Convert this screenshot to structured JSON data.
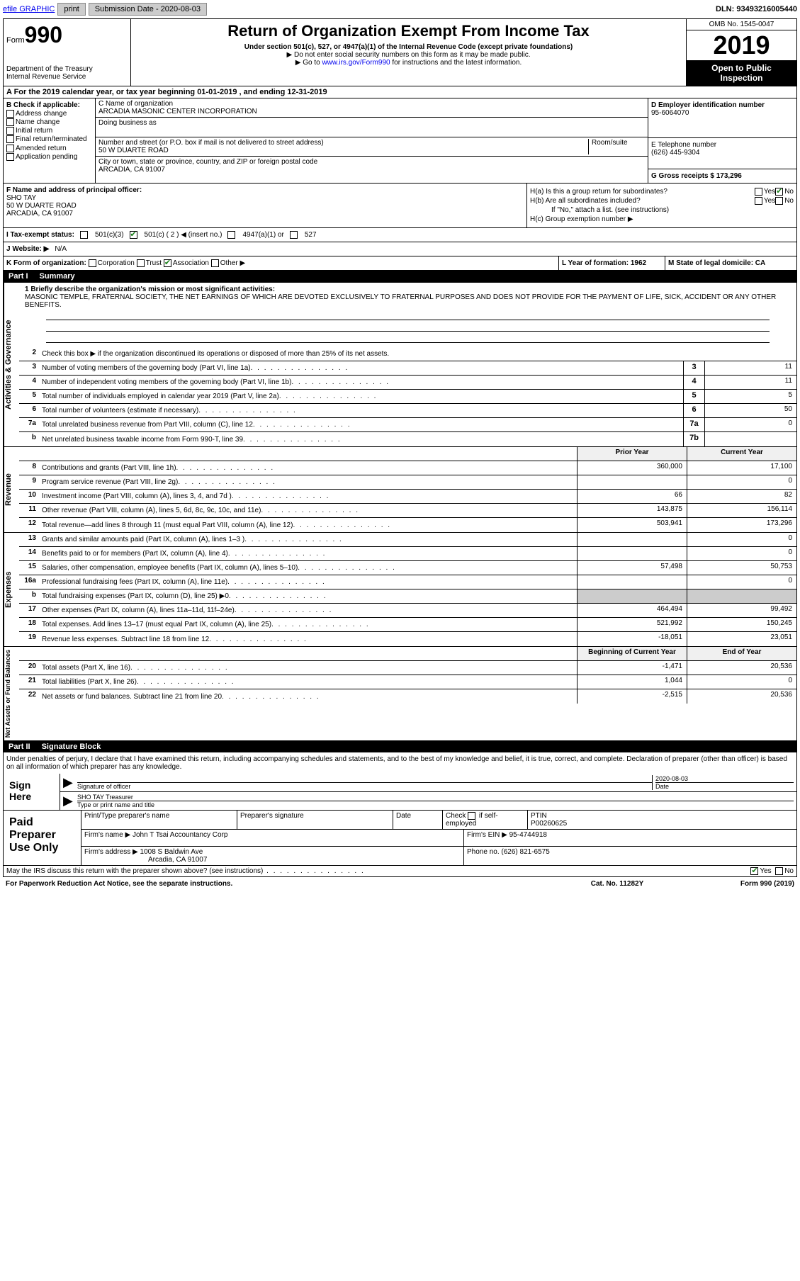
{
  "topbar": {
    "efile_label": "efile GRAPHIC",
    "print_btn": "print",
    "sub_date_label": "Submission Date - 2020-08-03",
    "dln_label": "DLN: 93493216005440"
  },
  "header": {
    "form_label": "Form",
    "form_num": "990",
    "dept": "Department of the Treasury\nInternal Revenue Service",
    "title": "Return of Organization Exempt From Income Tax",
    "sub1": "Under section 501(c), 527, or 4947(a)(1) of the Internal Revenue Code (except private foundations)",
    "sub2": "▶ Do not enter social security numbers on this form as it may be made public.",
    "sub3_pre": "▶ Go to ",
    "sub3_link": "www.irs.gov/Form990",
    "sub3_post": " for instructions and the latest information.",
    "omb": "OMB No. 1545-0047",
    "year": "2019",
    "open_pub": "Open to Public Inspection"
  },
  "lineA": "A For the 2019 calendar year, or tax year beginning 01-01-2019    , and ending 12-31-2019",
  "boxB": {
    "label": "B Check if applicable:",
    "opts": [
      "Address change",
      "Name change",
      "Initial return",
      "Final return/terminated",
      "Amended return",
      "Application pending"
    ]
  },
  "boxC": {
    "name_label": "C Name of organization",
    "name": "ARCADIA MASONIC CENTER INCORPORATION",
    "dba_label": "Doing business as",
    "addr_label": "Number and street (or P.O. box if mail is not delivered to street address)",
    "room_label": "Room/suite",
    "addr": "50 W DUARTE ROAD",
    "city_label": "City or town, state or province, country, and ZIP or foreign postal code",
    "city": "ARCADIA, CA  91007"
  },
  "boxD": {
    "label": "D Employer identification number",
    "val": "95-6064070"
  },
  "boxE": {
    "label": "E Telephone number",
    "val": "(626) 445-9304"
  },
  "boxG": {
    "label": "G Gross receipts $ 173,296"
  },
  "boxF": {
    "label": "F  Name and address of principal officer:",
    "name": "SHO TAY",
    "addr1": "50 W DUARTE ROAD",
    "addr2": "ARCADIA, CA  91007"
  },
  "boxH": {
    "ha": "H(a)  Is this a group return for subordinates?",
    "hb": "H(b)  Are all subordinates included?",
    "hb_note": "If \"No,\" attach a list. (see instructions)",
    "hc": "H(c)  Group exemption number ▶",
    "yes": "Yes",
    "no": "No"
  },
  "rowI": {
    "label": "I  Tax-exempt status:",
    "o1": "501(c)(3)",
    "o2": "501(c) ( 2 ) ◀ (insert no.)",
    "o3": "4947(a)(1) or",
    "o4": "527"
  },
  "rowJ": {
    "label": "J  Website: ▶",
    "val": "N/A"
  },
  "rowK": {
    "label": "K Form of organization:",
    "o1": "Corporation",
    "o2": "Trust",
    "o3": "Association",
    "o4": "Other ▶"
  },
  "rowL": {
    "label": "L Year of formation: 1962"
  },
  "rowM": {
    "label": "M State of legal domicile: CA"
  },
  "part1": {
    "num": "Part I",
    "title": "Summary"
  },
  "summary": {
    "q1": "1  Briefly describe the organization's mission or most significant activities:",
    "q1text": "MASONIC TEMPLE, FRATERNAL SOCIETY, THE NET EARNINGS OF WHICH ARE DEVOTED EXCLUSIVELY TO FRATERNAL PURPOSES AND DOES NOT PROVIDE FOR THE PAYMENT OF LIFE, SICK, ACCIDENT OR ANY OTHER BENEFITS.",
    "q2": "Check this box ▶         if the organization discontinued its operations or disposed of more than 25% of its net assets.",
    "rows": [
      {
        "n": "3",
        "d": "Number of voting members of the governing body (Part VI, line 1a)",
        "b": "3",
        "v": "11"
      },
      {
        "n": "4",
        "d": "Number of independent voting members of the governing body (Part VI, line 1b)",
        "b": "4",
        "v": "11"
      },
      {
        "n": "5",
        "d": "Total number of individuals employed in calendar year 2019 (Part V, line 2a)",
        "b": "5",
        "v": "5"
      },
      {
        "n": "6",
        "d": "Total number of volunteers (estimate if necessary)",
        "b": "6",
        "v": "50"
      },
      {
        "n": "7a",
        "d": "Total unrelated business revenue from Part VIII, column (C), line 12",
        "b": "7a",
        "v": "0"
      },
      {
        "n": "b",
        "d": "Net unrelated business taxable income from Form 990-T, line 39",
        "b": "7b",
        "v": ""
      }
    ],
    "prior_hdr": "Prior Year",
    "curr_hdr": "Current Year",
    "rev": [
      {
        "n": "8",
        "d": "Contributions and grants (Part VIII, line 1h)",
        "p": "360,000",
        "c": "17,100"
      },
      {
        "n": "9",
        "d": "Program service revenue (Part VIII, line 2g)",
        "p": "",
        "c": "0"
      },
      {
        "n": "10",
        "d": "Investment income (Part VIII, column (A), lines 3, 4, and 7d )",
        "p": "66",
        "c": "82"
      },
      {
        "n": "11",
        "d": "Other revenue (Part VIII, column (A), lines 5, 6d, 8c, 9c, 10c, and 11e)",
        "p": "143,875",
        "c": "156,114"
      },
      {
        "n": "12",
        "d": "Total revenue—add lines 8 through 11 (must equal Part VIII, column (A), line 12)",
        "p": "503,941",
        "c": "173,296"
      }
    ],
    "exp": [
      {
        "n": "13",
        "d": "Grants and similar amounts paid (Part IX, column (A), lines 1–3 )",
        "p": "",
        "c": "0"
      },
      {
        "n": "14",
        "d": "Benefits paid to or for members (Part IX, column (A), line 4)",
        "p": "",
        "c": "0"
      },
      {
        "n": "15",
        "d": "Salaries, other compensation, employee benefits (Part IX, column (A), lines 5–10)",
        "p": "57,498",
        "c": "50,753"
      },
      {
        "n": "16a",
        "d": "Professional fundraising fees (Part IX, column (A), line 11e)",
        "p": "",
        "c": "0"
      },
      {
        "n": "b",
        "d": "Total fundraising expenses (Part IX, column (D), line 25) ▶0",
        "p": "GRAY",
        "c": "GRAY"
      },
      {
        "n": "17",
        "d": "Other expenses (Part IX, column (A), lines 11a–11d, 11f–24e)",
        "p": "464,494",
        "c": "99,492"
      },
      {
        "n": "18",
        "d": "Total expenses. Add lines 13–17 (must equal Part IX, column (A), line 25)",
        "p": "521,992",
        "c": "150,245"
      },
      {
        "n": "19",
        "d": "Revenue less expenses. Subtract line 18 from line 12",
        "p": "-18,051",
        "c": "23,051"
      }
    ],
    "net_hdr_b": "Beginning of Current Year",
    "net_hdr_e": "End of Year",
    "net": [
      {
        "n": "20",
        "d": "Total assets (Part X, line 16)",
        "p": "-1,471",
        "c": "20,536"
      },
      {
        "n": "21",
        "d": "Total liabilities (Part X, line 26)",
        "p": "1,044",
        "c": "0"
      },
      {
        "n": "22",
        "d": "Net assets or fund balances. Subtract line 21 from line 20",
        "p": "-2,515",
        "c": "20,536"
      }
    ]
  },
  "sidelabels": {
    "ag": "Activities & Governance",
    "rev": "Revenue",
    "exp": "Expenses",
    "net": "Net Assets or Fund Balances"
  },
  "part2": {
    "num": "Part II",
    "title": "Signature Block"
  },
  "sig": {
    "decl": "Under penalties of perjury, I declare that I have examined this return, including accompanying schedules and statements, and to the best of my knowledge and belief, it is true, correct, and complete. Declaration of preparer (other than officer) is based on all information of which preparer has any knowledge.",
    "sign_here": "Sign Here",
    "sig_officer": "Signature of officer",
    "date_lbl": "Date",
    "date_val": "2020-08-03",
    "name_title": "SHO TAY Treasurer",
    "type_lbl": "Type or print name and title"
  },
  "paid": {
    "label": "Paid Preparer Use Only",
    "h1": "Print/Type preparer's name",
    "h2": "Preparer's signature",
    "h3": "Date",
    "h4_pre": "Check",
    "h4_post": "if self-employed",
    "h5": "PTIN",
    "ptin": "P00260625",
    "firm_lbl": "Firm's name    ▶",
    "firm": "John T Tsai Accountancy Corp",
    "ein_lbl": "Firm's EIN ▶",
    "ein": "95-4744918",
    "addr_lbl": "Firm's address ▶",
    "addr1": "1008 S Baldwin Ave",
    "addr2": "Arcadia, CA  91007",
    "phone_lbl": "Phone no.",
    "phone": "(626) 821-6575"
  },
  "bottom": {
    "q": "May the IRS discuss this return with the preparer shown above? (see instructions)",
    "yes": "Yes",
    "no": "No"
  },
  "footer": {
    "l": "For Paperwork Reduction Act Notice, see the separate instructions.",
    "c": "Cat. No. 11282Y",
    "r": "Form 990 (2019)"
  }
}
